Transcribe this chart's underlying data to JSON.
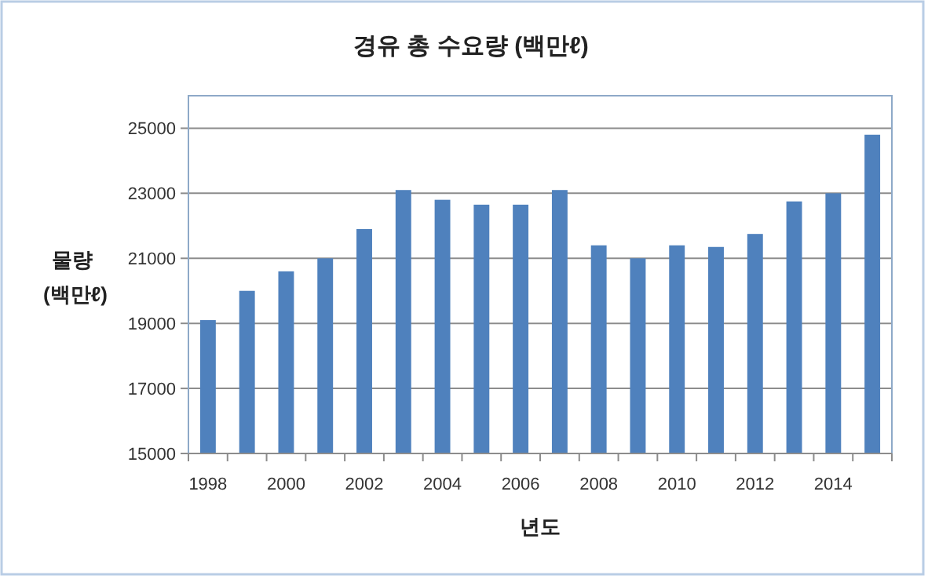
{
  "chart_data": {
    "type": "bar",
    "title": "경유 총 수요량 (백만ℓ)",
    "xlabel": "년도",
    "ylabel": "물량 (백만ℓ)",
    "categories": [
      "1998",
      null,
      "2000",
      null,
      "2002",
      null,
      "2004",
      null,
      "2006",
      null,
      "2008",
      null,
      "2010",
      null,
      "2012",
      null,
      "2014",
      null
    ],
    "values": [
      19100,
      20000,
      20600,
      21000,
      21900,
      23100,
      22800,
      22650,
      22650,
      23100,
      21400,
      21000,
      21400,
      21350,
      21750,
      22750,
      23000,
      24800
    ],
    "color": "#4f81bd",
    "ylim": [
      15000,
      26000
    ],
    "yticks": [
      15000,
      17000,
      19000,
      21000,
      23000,
      25000
    ],
    "grid": "y"
  }
}
